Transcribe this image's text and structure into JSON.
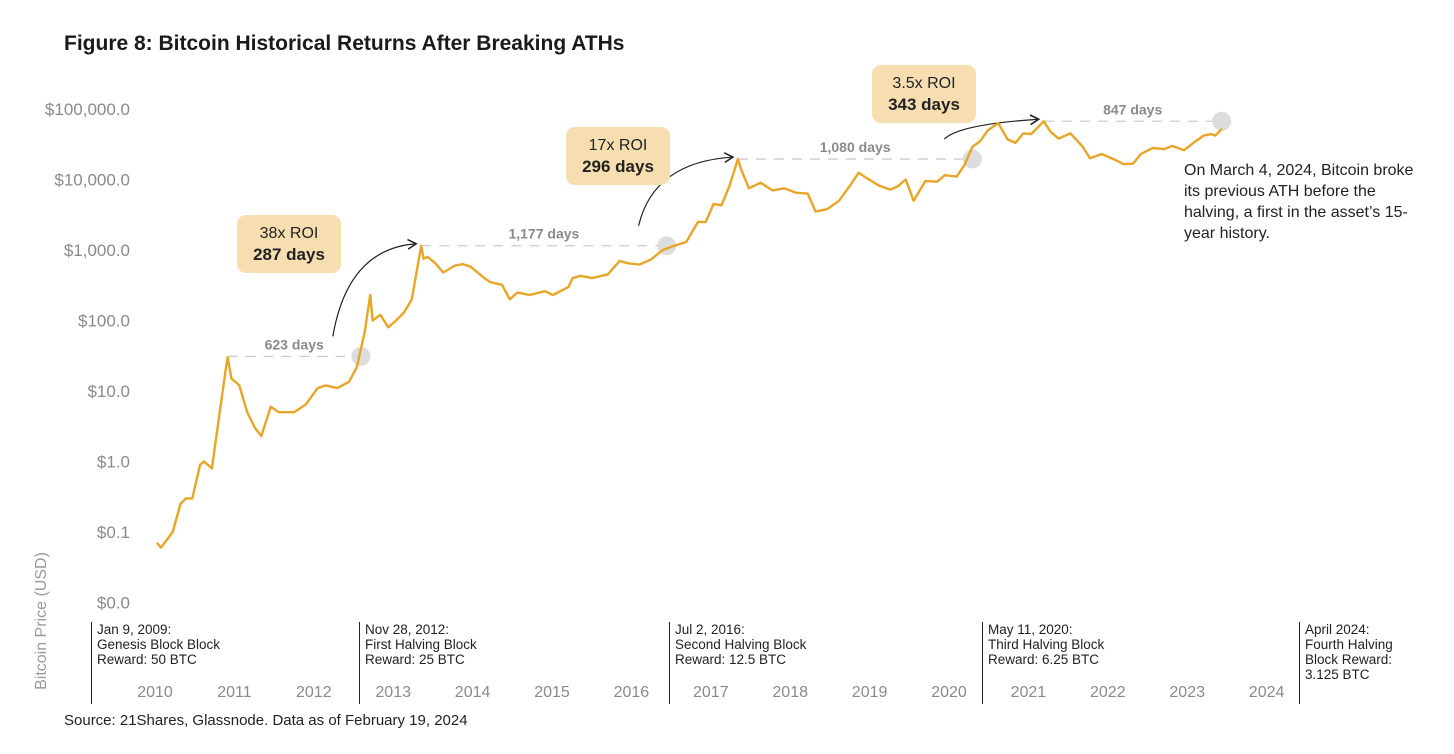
{
  "title": "Figure 8: Bitcoin Historical Returns After Breaking ATHs",
  "source": "Source: 21Shares, Glassnode. Data as of February 19, 2024",
  "note": "On March 4, 2024, Bitcoin broke its previous ATH before the halving, a first in the asset’s 15-year history.",
  "colors": {
    "line": "#e8a628",
    "box": "#f7deb1",
    "marker": "#d9d9d9",
    "dash": "#cccccc"
  },
  "halvings": [
    {
      "l1": "Jan 9, 2009:",
      "l2": "Genesis Block Block",
      "l3": "Reward: 50 BTC",
      "l4": ""
    },
    {
      "l1": "Nov 28, 2012:",
      "l2": "First Halving Block",
      "l3": "Reward: 25 BTC",
      "l4": ""
    },
    {
      "l1": "Jul 2, 2016:",
      "l2": "Second Halving Block",
      "l3": "Reward: 12.5 BTC",
      "l4": ""
    },
    {
      "l1": "May 11, 2020:",
      "l2": "Third Halving Block",
      "l3": "Reward: 6.25 BTC",
      "l4": ""
    },
    {
      "l1": "April 2024:",
      "l2": "Fourth Halving",
      "l3": "Block Reward:",
      "l4": "3.125 BTC"
    }
  ],
  "roi_boxes": [
    {
      "roi": "38x ROI",
      "days": "287 days"
    },
    {
      "roi": "17x ROI",
      "days": "296 days"
    },
    {
      "roi": "3.5x ROI",
      "days": "343 days"
    }
  ],
  "chart_data": {
    "type": "line",
    "title": "Figure 8: Bitcoin Historical Returns After Breaking ATHs",
    "ylabel": "Bitcoin Price (USD)",
    "yscale": "log",
    "ylim": [
      0.01,
      100000
    ],
    "yticks": [
      {
        "v": 100000,
        "label": "$100,000.0"
      },
      {
        "v": 10000,
        "label": "$10,000.0"
      },
      {
        "v": 1000,
        "label": "$1,000.0"
      },
      {
        "v": 100,
        "label": "$100.0"
      },
      {
        "v": 10,
        "label": "$10.0"
      },
      {
        "v": 1,
        "label": "$1.0"
      },
      {
        "v": 0.1,
        "label": "$0.1"
      },
      {
        "v": 0.01,
        "label": "$0.0"
      }
    ],
    "xticks": [
      "2010",
      "2011",
      "2012",
      "2013",
      "2014",
      "2015",
      "2016",
      "2017",
      "2018",
      "2019",
      "2020",
      "2021",
      "2022",
      "2023",
      "2024"
    ],
    "grid": false,
    "series": [
      {
        "x": [
          2010.55,
          2010.6,
          2010.75,
          2010.85,
          2010.92,
          2011.0,
          2011.1,
          2011.15,
          2011.25,
          2011.33,
          2011.42,
          2011.45,
          2011.5,
          2011.6,
          2011.7,
          2011.8,
          2011.88,
          2011.95,
          2012.0,
          2012.1,
          2012.3,
          2012.45,
          2012.6,
          2012.7,
          2012.85,
          2013.0,
          2013.1,
          2013.2,
          2013.27,
          2013.3,
          2013.4,
          2013.5,
          2013.6,
          2013.7,
          2013.8,
          2013.92,
          2013.95,
          2014.0,
          2014.1,
          2014.2,
          2014.35,
          2014.45,
          2014.55,
          2014.7,
          2014.8,
          2014.95,
          2015.05,
          2015.15,
          2015.3,
          2015.5,
          2015.6,
          2015.8,
          2015.85,
          2015.95,
          2016.1,
          2016.3,
          2016.45,
          2016.55,
          2016.7,
          2016.85,
          2017.0,
          2017.15,
          2017.3,
          2017.45,
          2017.55,
          2017.65,
          2017.75,
          2017.85,
          2017.96,
          2018.0,
          2018.1,
          2018.25,
          2018.4,
          2018.55,
          2018.7,
          2018.85,
          2018.95,
          2019.1,
          2019.25,
          2019.4,
          2019.5,
          2019.6,
          2019.75,
          2019.9,
          2020.0,
          2020.1,
          2020.2,
          2020.35,
          2020.5,
          2020.6,
          2020.75,
          2020.85,
          2020.95,
          2021.05,
          2021.15,
          2021.28,
          2021.4,
          2021.5,
          2021.6,
          2021.7,
          2021.86,
          2021.95,
          2022.05,
          2022.2,
          2022.35,
          2022.45,
          2022.6,
          2022.75,
          2022.88,
          2023.0,
          2023.1,
          2023.25,
          2023.4,
          2023.5,
          2023.65,
          2023.8,
          2023.9,
          2024.0,
          2024.05,
          2024.13
        ],
        "y": [
          0.07,
          0.06,
          0.1,
          0.25,
          0.3,
          0.3,
          0.9,
          1.0,
          0.8,
          3.5,
          18,
          30,
          15,
          12,
          5,
          3,
          2.3,
          4,
          6,
          5,
          5,
          6.5,
          11,
          12,
          11,
          13.5,
          22,
          70,
          230,
          100,
          120,
          80,
          100,
          130,
          200,
          1150,
          750,
          800,
          650,
          480,
          600,
          630,
          580,
          420,
          350,
          320,
          200,
          250,
          230,
          260,
          230,
          300,
          400,
          430,
          400,
          450,
          700,
          650,
          620,
          730,
          1000,
          1150,
          1300,
          2500,
          2500,
          4500,
          4300,
          8000,
          19500,
          14000,
          7500,
          9000,
          7000,
          7500,
          6500,
          6300,
          3500,
          3800,
          5000,
          8500,
          12500,
          10500,
          8300,
          7200,
          8000,
          10000,
          5000,
          9500,
          9300,
          11500,
          11000,
          16000,
          29000,
          35000,
          50000,
          63000,
          37000,
          33000,
          45000,
          44000,
          67000,
          47000,
          38000,
          45000,
          30000,
          20000,
          23000,
          19500,
          16500,
          16800,
          23000,
          28000,
          27000,
          30000,
          26000,
          35000,
          42000,
          44000,
          42000,
          52000
        ]
      }
    ],
    "annotations": [
      {
        "from": 2011.45,
        "to": 2013.15,
        "level": 31,
        "label": "623 days",
        "peak_after": 2013.92,
        "peak_price": 1150
      },
      {
        "from": 2013.92,
        "to": 2017.05,
        "level": 1150,
        "label": "1,177 days",
        "peak_after": 2017.96,
        "peak_price": 19500
      },
      {
        "from": 2017.96,
        "to": 2020.95,
        "level": 19500,
        "label": "1,080 days",
        "peak_after": 2021.86,
        "peak_price": 67000
      },
      {
        "from": 2021.86,
        "to": 2024.13,
        "level": 67000,
        "label": "847 days"
      }
    ]
  }
}
